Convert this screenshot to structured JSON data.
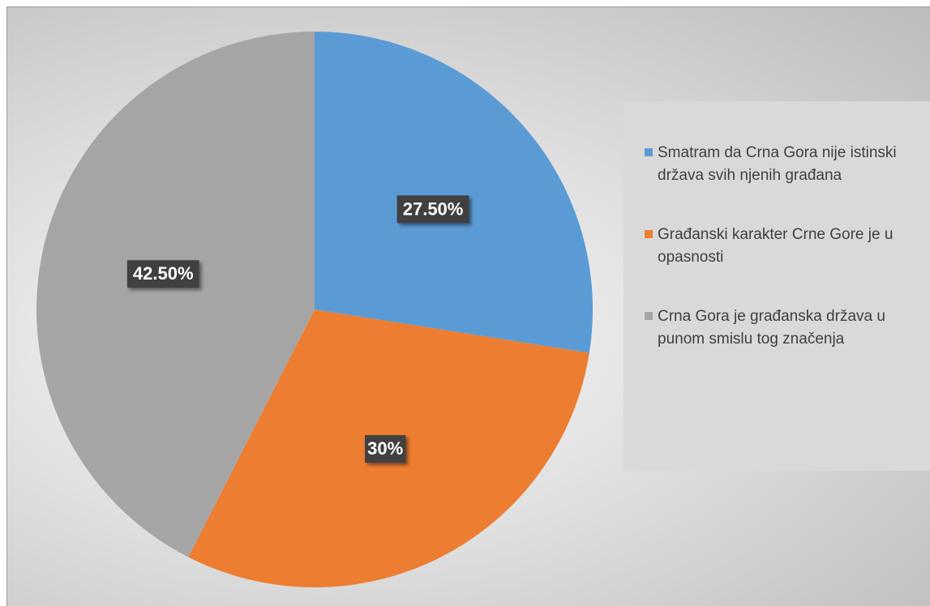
{
  "chart_data": {
    "type": "pie",
    "categories": [
      "Smatram da Crna Gora nije istinski država svih njenih građana",
      "Građanski karakter Crne Gore je u opasnosti",
      "Crna Gora je građanska država u punom smislu tog značenja"
    ],
    "values": [
      27.5,
      30,
      42.5
    ],
    "data_labels": [
      "27.50%",
      "30%",
      "42.50%"
    ],
    "colors": [
      "#5b9bd5",
      "#ed7d31",
      "#a5a5a5"
    ],
    "legend_position": "right",
    "start_angle": "12 o'clock, clockwise"
  }
}
